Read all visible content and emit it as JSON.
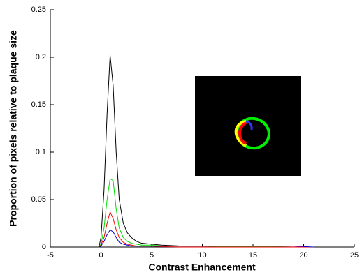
{
  "chart_data": {
    "type": "line",
    "xlabel": "Contrast Enhancement",
    "ylabel": "Proportion of pixels relative to plaque size",
    "x": [
      -0.2,
      0,
      0.3,
      0.6,
      0.9,
      1.2,
      1.5,
      1.8,
      2.2,
      2.6,
      3,
      3.5,
      4,
      5,
      6,
      8,
      10,
      13,
      16,
      19,
      21
    ],
    "series": [
      {
        "color": "#000000",
        "values": [
          0,
          0.01,
          0.06,
          0.14,
          0.202,
          0.17,
          0.1,
          0.05,
          0.025,
          0.015,
          0.01,
          0.006,
          0.004,
          0.003,
          0.002,
          0.001,
          0.001,
          0.0005,
          0.0005,
          0,
          0
        ]
      },
      {
        "color": "#00dd00",
        "values": [
          0,
          0.003,
          0.02,
          0.05,
          0.072,
          0.07,
          0.04,
          0.02,
          0.01,
          0.006,
          0.004,
          0.003,
          0.002,
          0.002,
          0.001,
          0.001,
          0.001,
          0.0005,
          0.0005,
          0,
          0
        ]
      },
      {
        "color": "#ff0000",
        "values": [
          0,
          0.002,
          0.01,
          0.025,
          0.037,
          0.03,
          0.018,
          0.01,
          0.005,
          0.003,
          0.002,
          0.001,
          0.001,
          0.001,
          0.0005,
          0,
          0,
          0,
          0,
          0,
          0
        ]
      },
      {
        "color": "#0000cc",
        "values": [
          0,
          0.001,
          0.006,
          0.013,
          0.018,
          0.016,
          0.01,
          0.005,
          0.003,
          0.002,
          0.001,
          0.001,
          0.001,
          0.001,
          0.001,
          0.001,
          0.001,
          0.001,
          0.001,
          0.001,
          0
        ]
      }
    ],
    "xlim": [
      -5,
      25
    ],
    "xticks": [
      -5,
      0,
      5,
      10,
      15,
      20,
      25
    ],
    "ylim": [
      0,
      0.25
    ],
    "yticks": [
      0,
      0.05,
      0.1,
      0.15,
      0.2,
      0.25
    ]
  }
}
